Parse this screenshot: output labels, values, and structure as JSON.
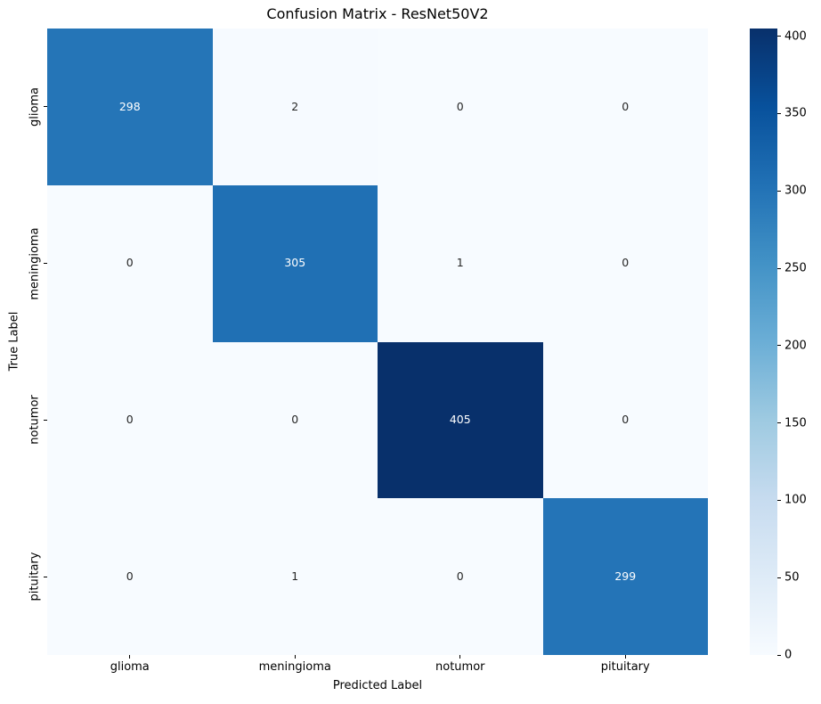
{
  "chart_data": {
    "type": "heatmap",
    "title": "Confusion Matrix - ResNet50V2",
    "xlabel": "Predicted Label",
    "ylabel": "True Label",
    "categories": [
      "glioma",
      "meningioma",
      "notumor",
      "pituitary"
    ],
    "rows": [
      [
        298,
        2,
        0,
        0
      ],
      [
        0,
        305,
        1,
        0
      ],
      [
        0,
        0,
        405,
        0
      ],
      [
        0,
        1,
        0,
        299
      ]
    ],
    "vmin": 0,
    "vmax": 405,
    "colormap": "Blues",
    "colormap_stops": [
      "#f7fbff",
      "#deebf7",
      "#c6dbef",
      "#9ecae1",
      "#6baed6",
      "#4292c6",
      "#2171b5",
      "#08519c",
      "#08306b"
    ],
    "colorbar_ticks": [
      0,
      50,
      100,
      150,
      200,
      250,
      300,
      350,
      400
    ],
    "colorbar_position": "right",
    "grid": false,
    "annotation_color_dark": "#262626",
    "annotation_color_light": "#ffffff",
    "background_color": "#ffffff",
    "text_color": "#000000"
  }
}
